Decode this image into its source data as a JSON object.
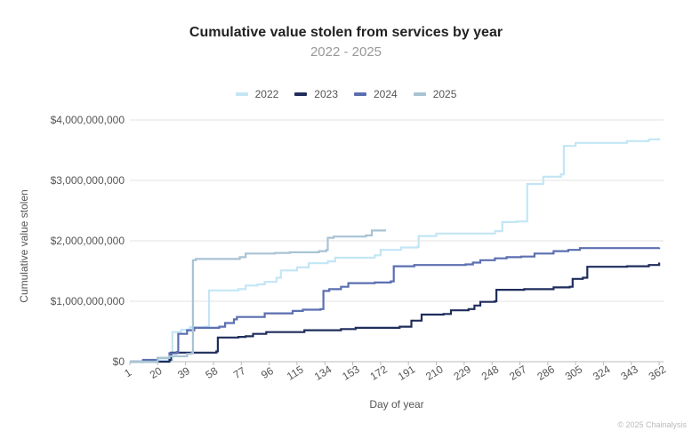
{
  "chart_data": {
    "type": "line",
    "title": "Cumulative value stolen from services by year",
    "subtitle": "2022 - 2025",
    "xlabel": "Day of year",
    "ylabel": "Cumulative value stolen",
    "x_ticks": [
      "1",
      "20",
      "39",
      "58",
      "77",
      "96",
      "115",
      "134",
      "153",
      "172",
      "191",
      "210",
      "229",
      "248",
      "267",
      "286",
      "305",
      "324",
      "343",
      "362"
    ],
    "y_ticks": [
      "$0",
      "$1,000,000,000",
      "$2,000,000,000",
      "$3,000,000,000",
      "$4,000,000,000"
    ],
    "xlim": [
      1,
      365
    ],
    "ylim": [
      0,
      4000000000
    ],
    "grid": true,
    "legend_position": "top-center",
    "series": [
      {
        "name": "2022",
        "color": "#c3e6f5",
        "points": [
          [
            1,
            0
          ],
          [
            20,
            20000000
          ],
          [
            29,
            30000000
          ],
          [
            30,
            490000000
          ],
          [
            36,
            530000000
          ],
          [
            42,
            570000000
          ],
          [
            52,
            580000000
          ],
          [
            55,
            1180000000
          ],
          [
            75,
            1200000000
          ],
          [
            80,
            1260000000
          ],
          [
            88,
            1280000000
          ],
          [
            93,
            1320000000
          ],
          [
            101,
            1390000000
          ],
          [
            104,
            1510000000
          ],
          [
            115,
            1560000000
          ],
          [
            123,
            1630000000
          ],
          [
            136,
            1660000000
          ],
          [
            141,
            1720000000
          ],
          [
            168,
            1760000000
          ],
          [
            172,
            1850000000
          ],
          [
            186,
            1890000000
          ],
          [
            197,
            1900000000
          ],
          [
            198,
            2080000000
          ],
          [
            210,
            2120000000
          ],
          [
            250,
            2160000000
          ],
          [
            255,
            2310000000
          ],
          [
            265,
            2320000000
          ],
          [
            272,
            2940000000
          ],
          [
            283,
            3060000000
          ],
          [
            295,
            3100000000
          ],
          [
            297,
            3570000000
          ],
          [
            305,
            3620000000
          ],
          [
            340,
            3650000000
          ],
          [
            355,
            3680000000
          ],
          [
            362,
            3700000000
          ]
        ]
      },
      {
        "name": "2023",
        "color": "#1f2d5c",
        "points": [
          [
            1,
            0
          ],
          [
            28,
            30000000
          ],
          [
            29,
            150000000
          ],
          [
            60,
            170000000
          ],
          [
            61,
            400000000
          ],
          [
            75,
            410000000
          ],
          [
            80,
            420000000
          ],
          [
            85,
            460000000
          ],
          [
            94,
            490000000
          ],
          [
            120,
            520000000
          ],
          [
            145,
            540000000
          ],
          [
            155,
            560000000
          ],
          [
            185,
            580000000
          ],
          [
            193,
            680000000
          ],
          [
            200,
            780000000
          ],
          [
            215,
            790000000
          ],
          [
            220,
            850000000
          ],
          [
            232,
            870000000
          ],
          [
            236,
            930000000
          ],
          [
            240,
            990000000
          ],
          [
            250,
            1000000000
          ],
          [
            251,
            1190000000
          ],
          [
            270,
            1200000000
          ],
          [
            290,
            1230000000
          ],
          [
            301,
            1240000000
          ],
          [
            303,
            1370000000
          ],
          [
            310,
            1390000000
          ],
          [
            313,
            1570000000
          ],
          [
            340,
            1580000000
          ],
          [
            355,
            1600000000
          ],
          [
            362,
            1640000000
          ]
        ]
      },
      {
        "name": "2024",
        "color": "#5b6fb0",
        "points": [
          [
            1,
            0
          ],
          [
            10,
            30000000
          ],
          [
            20,
            60000000
          ],
          [
            28,
            140000000
          ],
          [
            33,
            160000000
          ],
          [
            34,
            460000000
          ],
          [
            40,
            520000000
          ],
          [
            45,
            560000000
          ],
          [
            62,
            580000000
          ],
          [
            66,
            640000000
          ],
          [
            72,
            700000000
          ],
          [
            74,
            740000000
          ],
          [
            93,
            800000000
          ],
          [
            112,
            840000000
          ],
          [
            119,
            860000000
          ],
          [
            131,
            870000000
          ],
          [
            133,
            1170000000
          ],
          [
            137,
            1200000000
          ],
          [
            145,
            1240000000
          ],
          [
            150,
            1300000000
          ],
          [
            168,
            1310000000
          ],
          [
            179,
            1330000000
          ],
          [
            181,
            1580000000
          ],
          [
            195,
            1600000000
          ],
          [
            230,
            1610000000
          ],
          [
            235,
            1640000000
          ],
          [
            240,
            1680000000
          ],
          [
            250,
            1710000000
          ],
          [
            258,
            1730000000
          ],
          [
            268,
            1740000000
          ],
          [
            277,
            1790000000
          ],
          [
            290,
            1830000000
          ],
          [
            300,
            1850000000
          ],
          [
            308,
            1880000000
          ],
          [
            330,
            1880000000
          ],
          [
            362,
            1890000000
          ]
        ]
      },
      {
        "name": "2025",
        "color": "#a8c3d3",
        "points": [
          [
            1,
            0
          ],
          [
            20,
            60000000
          ],
          [
            28,
            90000000
          ],
          [
            40,
            130000000
          ],
          [
            43,
            140000000
          ],
          [
            44,
            1680000000
          ],
          [
            46,
            1700000000
          ],
          [
            70,
            1700000000
          ],
          [
            76,
            1730000000
          ],
          [
            80,
            1790000000
          ],
          [
            100,
            1800000000
          ],
          [
            110,
            1810000000
          ],
          [
            130,
            1830000000
          ],
          [
            135,
            1850000000
          ],
          [
            136,
            2050000000
          ],
          [
            140,
            2070000000
          ],
          [
            162,
            2090000000
          ],
          [
            166,
            2170000000
          ],
          [
            175,
            2190000000
          ]
        ]
      }
    ]
  },
  "footer": {
    "copyright": "© 2025 Chainalysis"
  }
}
